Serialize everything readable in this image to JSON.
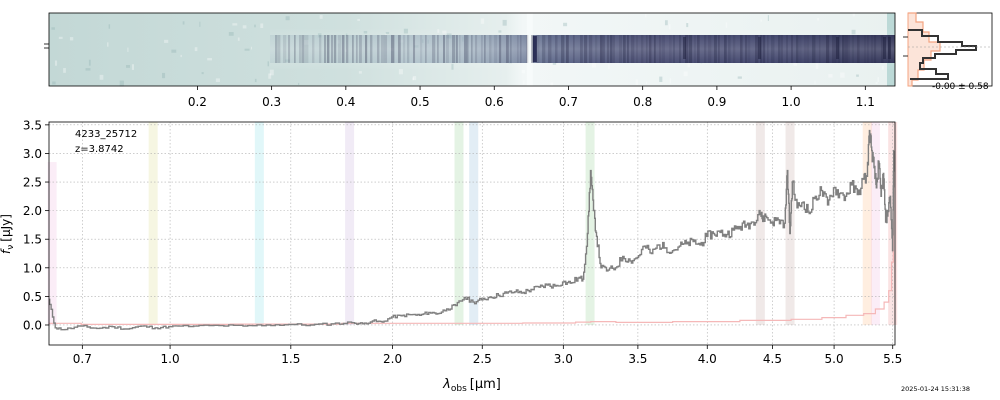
{
  "chart_data": [
    {
      "type": "heatmap",
      "panel": "2D spectrum",
      "x_tick_labels": [
        "0.2",
        "0.3",
        "0.4",
        "0.5",
        "0.6",
        "0.7",
        "0.8",
        "0.9",
        "1.0",
        "1.1"
      ],
      "x_tick_values": [
        0.2,
        0.3,
        0.4,
        0.5,
        0.6,
        0.7,
        0.8,
        0.9,
        1.0,
        1.1
      ],
      "xlim": [
        0.0,
        1.14
      ],
      "colormap": "bone_r",
      "trace_break_x": 0.652
    },
    {
      "type": "line",
      "panel": "trace profile",
      "label": "-0.00 ± 0.58",
      "colors": {
        "profile": "#333333",
        "fill": "#f4a582",
        "edge": "#f4a582"
      }
    },
    {
      "type": "line",
      "panel": "1D spectrum",
      "id_label": "4233_25712",
      "z_label": "z=3.8742",
      "xlabel_main": "λ",
      "xlabel_sub": "obs",
      "xlabel_unit": "[μm]",
      "ylabel_main": "f",
      "ylabel_sub": "ν",
      "ylabel_unit": "[μJy]",
      "x_tick_labels": [
        "0.7",
        "1.0",
        "1.5",
        "2.0",
        "2.5",
        "3.0",
        "3.5",
        "4.0",
        "4.5",
        "5.0",
        "5.5"
      ],
      "x_tick_values": [
        0.7,
        1.0,
        1.5,
        2.0,
        2.5,
        3.0,
        3.5,
        4.0,
        4.5,
        5.0,
        5.5
      ],
      "y_tick_labels": [
        "0.0",
        "0.5",
        "1.0",
        "1.5",
        "2.0",
        "2.5",
        "3.0",
        "3.5"
      ],
      "y_tick_values": [
        0.0,
        0.5,
        1.0,
        1.5,
        2.0,
        2.5,
        3.0,
        3.5
      ],
      "xlim": [
        0.6,
        5.52
      ],
      "ylim": [
        -0.35,
        3.55
      ],
      "grid": true,
      "line_bands": [
        {
          "x": 0.609,
          "color": "#e377c2",
          "top": 2.85
        },
        {
          "x": 0.938,
          "color": "#bcbd22",
          "top": 3.55
        },
        {
          "x": 1.36,
          "color": "#17becf",
          "top": 3.55
        },
        {
          "x": 1.78,
          "color": "#9467bd",
          "top": 3.55
        },
        {
          "x": 2.365,
          "color": "#2ca02c",
          "top": 3.55
        },
        {
          "x": 2.45,
          "color": "#1f77b4",
          "top": 3.55
        },
        {
          "x": 3.175,
          "color": "#2ca02c",
          "top": 3.55
        },
        {
          "x": 4.405,
          "color": "#8c564b",
          "top": 3.55
        },
        {
          "x": 4.64,
          "color": "#8c564b",
          "top": 3.55
        },
        {
          "x": 5.28,
          "color": "#ff7f0e",
          "top": 3.55
        },
        {
          "x": 5.35,
          "color": "#e377c2",
          "top": 3.55
        },
        {
          "x": 5.5,
          "color": "#d62728",
          "top": 3.55
        }
      ],
      "series": [
        {
          "kind": "flux",
          "color": "#808080",
          "x": [
            0.6,
            0.62,
            0.65,
            0.7,
            0.75,
            0.8,
            0.85,
            0.9,
            0.95,
            1.0,
            1.1,
            1.2,
            1.3,
            1.4,
            1.5,
            1.6,
            1.7,
            1.8,
            1.85,
            1.9,
            1.95,
            2.0,
            2.05,
            2.1,
            2.15,
            2.2,
            2.25,
            2.3,
            2.35,
            2.4,
            2.45,
            2.5,
            2.55,
            2.6,
            2.65,
            2.7,
            2.75,
            2.8,
            2.85,
            2.9,
            2.95,
            3.0,
            3.05,
            3.1,
            3.13,
            3.16,
            3.18,
            3.2,
            3.22,
            3.25,
            3.3,
            3.35,
            3.4,
            3.45,
            3.5,
            3.55,
            3.6,
            3.65,
            3.7,
            3.75,
            3.8,
            3.85,
            3.9,
            3.95,
            4.0,
            4.05,
            4.1,
            4.15,
            4.2,
            4.25,
            4.3,
            4.35,
            4.4,
            4.42,
            4.45,
            4.5,
            4.55,
            4.6,
            4.62,
            4.64,
            4.66,
            4.7,
            4.75,
            4.8,
            4.85,
            4.9,
            4.95,
            5.0,
            5.05,
            5.1,
            5.15,
            5.2,
            5.25,
            5.28,
            5.3,
            5.32,
            5.34,
            5.36,
            5.38,
            5.4,
            5.42,
            5.44,
            5.46,
            5.48,
            5.5,
            5.51
          ],
          "y": [
            0.45,
            -0.05,
            -0.08,
            -0.02,
            -0.06,
            -0.03,
            -0.07,
            -0.02,
            -0.05,
            -0.03,
            -0.02,
            -0.01,
            -0.02,
            0.0,
            0.01,
            0.0,
            0.02,
            0.04,
            0.02,
            0.07,
            0.05,
            0.14,
            0.16,
            0.18,
            0.17,
            0.22,
            0.2,
            0.28,
            0.34,
            0.48,
            0.4,
            0.44,
            0.49,
            0.52,
            0.56,
            0.58,
            0.57,
            0.62,
            0.66,
            0.7,
            0.68,
            0.75,
            0.73,
            0.82,
            0.8,
            1.6,
            2.7,
            2.0,
            1.55,
            1.0,
            0.96,
            1.0,
            1.2,
            1.12,
            1.18,
            1.38,
            1.25,
            1.4,
            1.35,
            1.3,
            1.38,
            1.42,
            1.46,
            1.4,
            1.55,
            1.6,
            1.62,
            1.58,
            1.66,
            1.72,
            1.75,
            1.8,
            2.0,
            1.86,
            1.9,
            1.8,
            1.84,
            1.78,
            2.7,
            1.6,
            2.5,
            2.05,
            2.15,
            1.95,
            2.25,
            2.35,
            2.1,
            2.4,
            2.3,
            2.25,
            2.45,
            2.28,
            2.55,
            2.6,
            3.4,
            3.05,
            2.75,
            2.4,
            2.85,
            2.25,
            2.65,
            1.8,
            2.0,
            2.25,
            1.3,
            3.05
          ]
        },
        {
          "kind": "error",
          "color": "#f5b8b8",
          "x": [
            0.6,
            0.8,
            1.0,
            1.5,
            2.0,
            2.5,
            3.0,
            3.16,
            3.2,
            3.5,
            4.0,
            4.5,
            4.8,
            5.0,
            5.2,
            5.3,
            5.4,
            5.45,
            5.48,
            5.5,
            5.51
          ],
          "y": [
            0.03,
            0.01,
            0.01,
            0.015,
            0.03,
            0.03,
            0.035,
            0.05,
            0.06,
            0.045,
            0.06,
            0.08,
            0.1,
            0.13,
            0.17,
            0.2,
            0.28,
            0.4,
            0.6,
            1.1,
            1.8
          ]
        }
      ]
    }
  ],
  "footer": {
    "timestamp": "2025-01-24 15:31:38"
  }
}
